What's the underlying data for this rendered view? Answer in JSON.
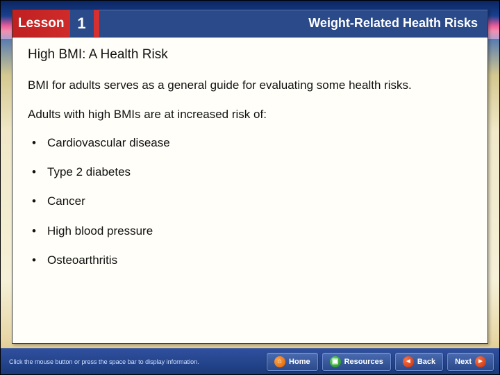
{
  "theme": {
    "header_bg": "#2a4a8a",
    "lesson_bg": "#c02020",
    "panel_bg": "#fffef8",
    "footer_bg_top": "#3050a0",
    "footer_bg_bottom": "#1a3a7a",
    "text_color": "#111111",
    "header_text": "#ffffff",
    "title_fontsize": 18,
    "subtitle_fontsize": 19,
    "body_fontsize": 17
  },
  "header": {
    "lesson_label": "Lesson",
    "lesson_number": "1",
    "topic_title": "Weight-Related Health Risks"
  },
  "content": {
    "subtitle": "High BMI: A Health Risk",
    "intro": "BMI for adults serves as a general guide for evaluating some health risks.",
    "lead": "Adults with high BMIs are at increased risk of:",
    "bullets": [
      "Cardiovascular disease",
      "Type 2 diabetes",
      "Cancer",
      "High blood pressure",
      "Osteoarthritis"
    ]
  },
  "footer": {
    "hint": "Click the mouse button or press the space bar to display information.",
    "buttons": {
      "home": "Home",
      "resources": "Resources",
      "back": "Back",
      "next": "Next"
    }
  }
}
